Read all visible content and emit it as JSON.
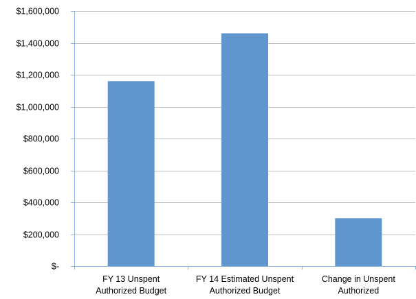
{
  "chart_data": {
    "type": "bar",
    "categories": [
      [
        "FY 13 Unspent",
        "Authorized Budget"
      ],
      [
        "FY 14 Estimated Unspent",
        "Authorized Budget"
      ],
      [
        "Change in Unspent",
        "Authorized"
      ]
    ],
    "values": [
      1160000,
      1460000,
      300000
    ],
    "ylim": [
      0,
      1600000
    ],
    "yticks": [
      0,
      200000,
      400000,
      600000,
      800000,
      1000000,
      1200000,
      1400000,
      1600000
    ],
    "ytick_labels": [
      "$-",
      "$200,000",
      "$400,000",
      "$600,000",
      "$800,000",
      "$1,000,000",
      "$1,200,000",
      "$1,400,000",
      "$1,600,000"
    ],
    "title": "",
    "xlabel": "",
    "ylabel": "",
    "grid": true,
    "legend": "none",
    "bar_color": "#6096CE",
    "grid_color": "#BFBFBF",
    "axis_color": "#8DB3E2"
  }
}
